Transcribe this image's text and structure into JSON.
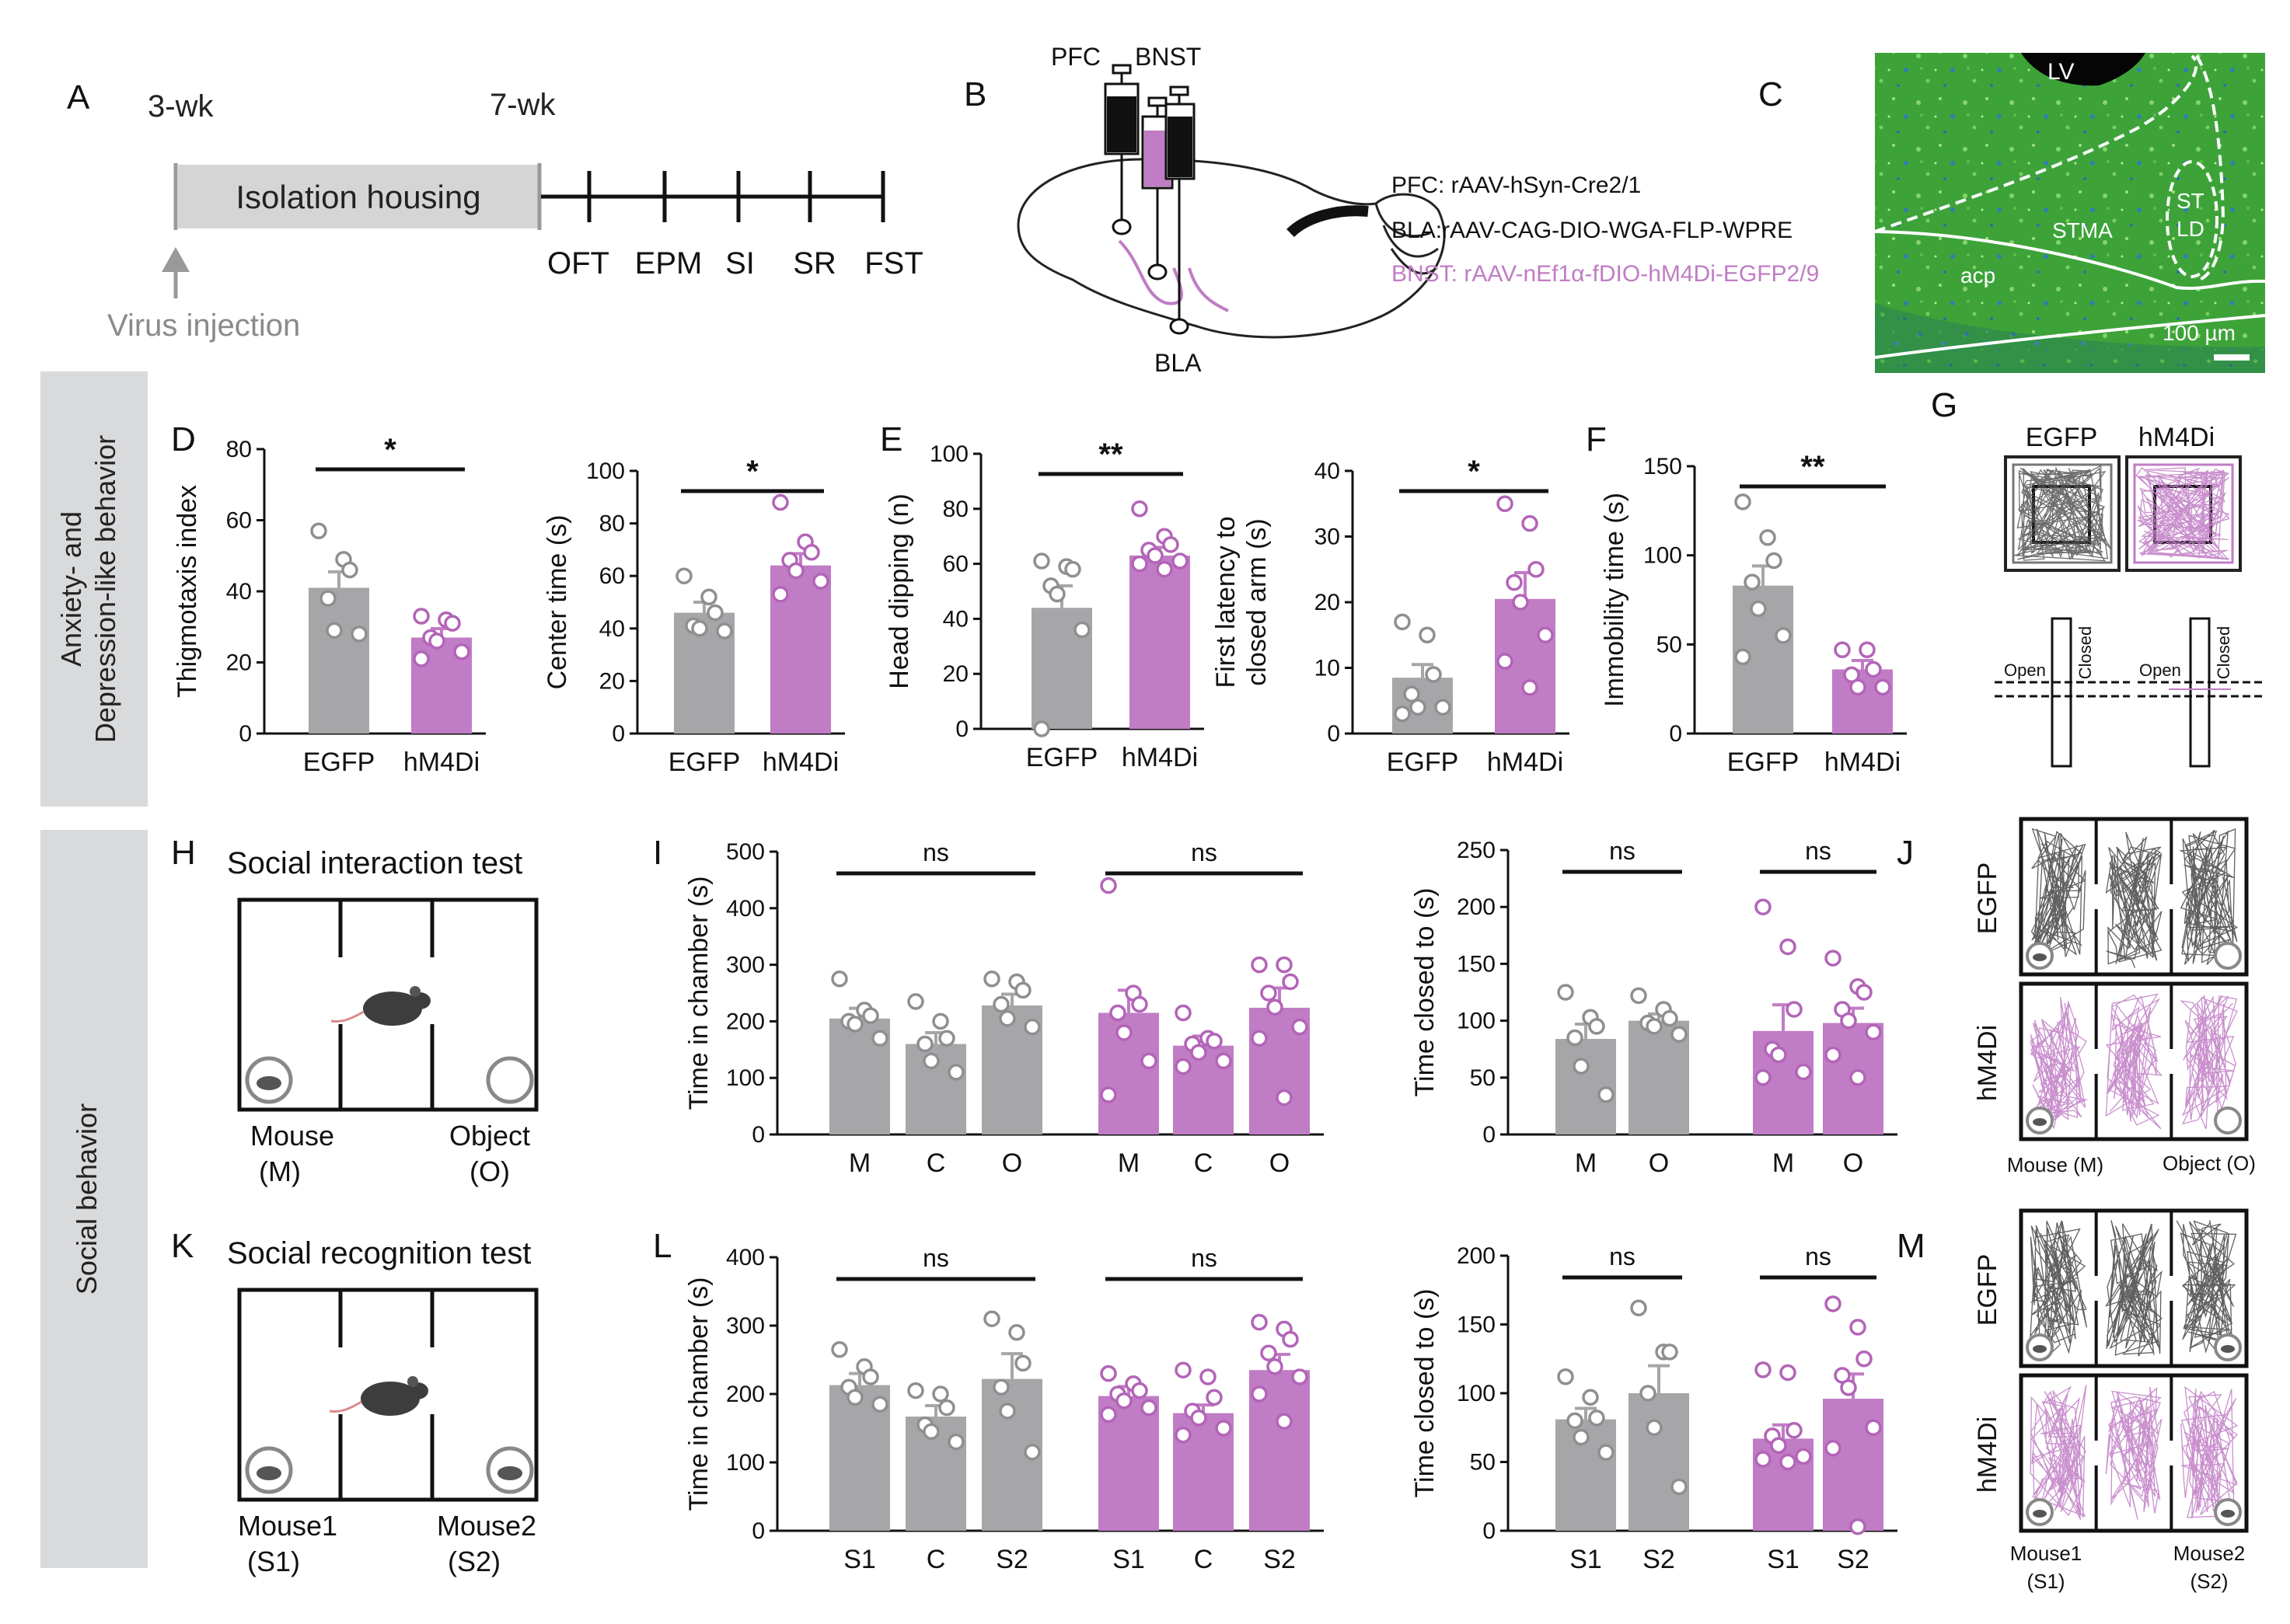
{
  "colors": {
    "egfp": "#a6a6a8",
    "egfp_dot": "#8f8f91",
    "hm4di": "#c07cc4",
    "hm4di_dot": "#b364b7",
    "side_band": "#d9dadc",
    "housing_box": "#d5d5d5",
    "histology_green": "#3faa3a"
  },
  "side_labels": {
    "anxiety_line1": "Anxiety- and",
    "anxiety_line2": "Depression-like behavior",
    "social": "Social behavior"
  },
  "panel_letters": [
    "A",
    "B",
    "C",
    "D",
    "E",
    "F",
    "G",
    "H",
    "I",
    "J",
    "K",
    "L",
    "M"
  ],
  "panelA": {
    "start_label": "3-wk",
    "end_label": "7-wk",
    "housing_label": "Isolation housing",
    "injection_label": "Virus injection",
    "tests": [
      "OFT",
      "EPM",
      "SI",
      "SR",
      "FST"
    ]
  },
  "panelB": {
    "pfc": "PFC",
    "bnst": "BNST",
    "bla": "BLA",
    "legend": [
      "PFC: rAAV-hSyn-Cre2/1",
      "BLA:rAAV-CAG-DIO-WGA-FLP-WPRE",
      "BNST: rAAV-nEf1α-fDIO-hM4Di-EGFP2/9"
    ]
  },
  "panelC": {
    "labels": [
      "LV",
      "ST",
      "LD",
      "STMA",
      "acp"
    ],
    "scale_label": "100 µm"
  },
  "panelG": {
    "groups": [
      "EGFP",
      "hM4Di"
    ],
    "open_label": "Open",
    "closed_label": "Closed"
  },
  "panelH": {
    "title": "Social interaction test",
    "left_label": "Mouse",
    "left_sub": "(M)",
    "right_label": "Object",
    "right_sub": "(O)"
  },
  "panelJ": {
    "rows": [
      "EGFP",
      "hM4Di"
    ],
    "left_label": "Mouse (M)",
    "right_label": "Object (O)"
  },
  "panelK": {
    "title": "Social recognition test",
    "left_label": "Mouse1",
    "left_sub": "(S1)",
    "right_label": "Mouse2",
    "right_sub": "(S2)"
  },
  "panelM": {
    "rows": [
      "EGFP",
      "hM4Di"
    ],
    "left_label": "Mouse1",
    "left_sub": "(S1)",
    "right_label": "Mouse2",
    "right_sub": "(S2)"
  },
  "chart_data": [
    {
      "id": "thigmotaxis",
      "panel": "D",
      "type": "bar",
      "ylabel": "Thigmotaxis index",
      "ylim": [
        0,
        80
      ],
      "yticks": [
        0,
        20,
        40,
        60,
        80
      ],
      "groups": [
        "EGFP",
        "hM4Di"
      ],
      "values": [
        41,
        27
      ],
      "sem": [
        4.5,
        2.5
      ],
      "points": [
        [
          57,
          49,
          46,
          38,
          29,
          28
        ],
        [
          33,
          32,
          31,
          27,
          26,
          23,
          21
        ]
      ],
      "sig": "*"
    },
    {
      "id": "center_time",
      "panel": "D",
      "type": "bar",
      "ylabel": "Center time (s)",
      "ylim": [
        0,
        100
      ],
      "yticks": [
        0,
        20,
        40,
        60,
        80,
        100
      ],
      "groups": [
        "EGFP",
        "hM4Di"
      ],
      "values": [
        46,
        64
      ],
      "sem": [
        4,
        4.5
      ],
      "points": [
        [
          60,
          52,
          46,
          41,
          40,
          39
        ],
        [
          88,
          73,
          69,
          66,
          62,
          58,
          53
        ]
      ],
      "sig": "*"
    },
    {
      "id": "head_dipping",
      "panel": "E",
      "type": "bar",
      "ylabel": "Head dipping (n)",
      "ylim": [
        0,
        100
      ],
      "yticks": [
        0,
        20,
        40,
        60,
        80,
        100
      ],
      "groups": [
        "EGFP",
        "hM4Di"
      ],
      "values": [
        44,
        63
      ],
      "sem": [
        8,
        3
      ],
      "points": [
        [
          61,
          59,
          58,
          52,
          49,
          36,
          0
        ],
        [
          80,
          70,
          67,
          65,
          63,
          61,
          60,
          58
        ]
      ],
      "sig": "**"
    },
    {
      "id": "first_latency",
      "panel": "E",
      "type": "bar",
      "ylabel": "First latency to closed arm (s)",
      "ylabel_lines": [
        "First latency to",
        "closed arm (s)"
      ],
      "ylim": [
        0,
        40
      ],
      "yticks": [
        0,
        10,
        20,
        30,
        40
      ],
      "groups": [
        "EGFP",
        "hM4Di"
      ],
      "values": [
        8.5,
        20.5
      ],
      "sem": [
        2,
        4
      ],
      "points": [
        [
          17,
          15,
          9,
          6,
          4,
          4,
          3
        ],
        [
          35,
          32,
          25,
          23,
          20,
          15,
          11,
          7
        ]
      ],
      "sig": "*"
    },
    {
      "id": "immobility",
      "panel": "F",
      "type": "bar",
      "ylabel": "Immobility time (s)",
      "ylim": [
        0,
        150
      ],
      "yticks": [
        0,
        50,
        100,
        150
      ],
      "groups": [
        "EGFP",
        "hM4Di"
      ],
      "values": [
        83,
        36
      ],
      "sem": [
        11,
        5
      ],
      "points": [
        [
          130,
          110,
          97,
          85,
          70,
          55,
          43
        ],
        [
          47,
          47,
          36,
          33,
          26,
          26
        ]
      ],
      "sig": "**"
    },
    {
      "id": "si_time_chamber",
      "panel": "I",
      "type": "bar",
      "ylabel": "Time in chamber (s)",
      "ylim": [
        0,
        500
      ],
      "yticks": [
        0,
        100,
        200,
        300,
        400,
        500
      ],
      "categories": [
        "M",
        "C",
        "O",
        "M",
        "C",
        "O"
      ],
      "group_of_bar": [
        "EGFP",
        "EGFP",
        "EGFP",
        "hM4Di",
        "hM4Di",
        "hM4Di"
      ],
      "values": [
        205,
        160,
        228,
        215,
        157,
        224
      ],
      "sem": [
        18,
        20,
        20,
        40,
        17,
        35
      ],
      "points": [
        [
          275,
          220,
          210,
          200,
          195,
          170
        ],
        [
          235,
          200,
          170,
          160,
          130,
          110
        ],
        [
          275,
          270,
          255,
          230,
          205,
          190
        ],
        [
          440,
          250,
          230,
          215,
          180,
          130,
          70
        ],
        [
          215,
          170,
          165,
          160,
          145,
          130,
          120
        ],
        [
          300,
          300,
          270,
          250,
          225,
          190,
          170,
          65
        ]
      ],
      "sig": [
        {
          "from": 0,
          "to": 2,
          "label": "ns"
        },
        {
          "from": 3,
          "to": 5,
          "label": "ns"
        }
      ]
    },
    {
      "id": "si_time_closed",
      "panel": "I",
      "type": "bar",
      "ylabel": "Time closed to (s)",
      "ylim": [
        0,
        250
      ],
      "yticks": [
        0,
        50,
        100,
        150,
        200,
        250
      ],
      "categories": [
        "M",
        "O",
        "M",
        "O"
      ],
      "group_of_bar": [
        "EGFP",
        "EGFP",
        "hM4Di",
        "hM4Di"
      ],
      "values": [
        84,
        100,
        91,
        98
      ],
      "sem": [
        13,
        6,
        23,
        13
      ],
      "points": [
        [
          125,
          103,
          95,
          85,
          60,
          35
        ],
        [
          122,
          110,
          102,
          98,
          95,
          88
        ],
        [
          200,
          165,
          110,
          75,
          70,
          55,
          50
        ],
        [
          155,
          130,
          125,
          110,
          100,
          90,
          70,
          50
        ]
      ],
      "sig": [
        {
          "from": 0,
          "to": 1,
          "label": "ns"
        },
        {
          "from": 2,
          "to": 3,
          "label": "ns"
        }
      ]
    },
    {
      "id": "sr_time_chamber",
      "panel": "L",
      "type": "bar",
      "ylabel": "Time in chamber (s)",
      "ylim": [
        0,
        400
      ],
      "yticks": [
        0,
        100,
        200,
        300,
        400
      ],
      "categories": [
        "S1",
        "C",
        "S2",
        "S1",
        "C",
        "S2"
      ],
      "group_of_bar": [
        "EGFP",
        "EGFP",
        "EGFP",
        "hM4Di",
        "hM4Di",
        "hM4Di"
      ],
      "values": [
        213,
        167,
        222,
        197,
        172,
        235
      ],
      "sem": [
        17,
        16,
        37,
        14,
        12,
        23
      ],
      "points": [
        [
          265,
          240,
          225,
          210,
          195,
          185
        ],
        [
          205,
          200,
          180,
          155,
          145,
          130
        ],
        [
          310,
          290,
          245,
          210,
          175,
          115
        ],
        [
          230,
          215,
          205,
          200,
          190,
          180,
          170
        ],
        [
          235,
          225,
          195,
          175,
          165,
          150,
          140
        ],
        [
          305,
          295,
          280,
          260,
          240,
          225,
          200,
          160
        ]
      ],
      "sig": [
        {
          "from": 0,
          "to": 2,
          "label": "ns"
        },
        {
          "from": 3,
          "to": 5,
          "label": "ns"
        }
      ]
    },
    {
      "id": "sr_time_closed",
      "panel": "L",
      "type": "bar",
      "ylabel": "Time closed to (s)",
      "ylim": [
        0,
        200
      ],
      "yticks": [
        0,
        50,
        100,
        150,
        200
      ],
      "categories": [
        "S1",
        "S2",
        "S1",
        "S2"
      ],
      "group_of_bar": [
        "EGFP",
        "EGFP",
        "hM4Di",
        "hM4Di"
      ],
      "values": [
        81,
        100,
        67,
        96
      ],
      "sem": [
        8,
        20,
        10,
        18
      ],
      "points": [
        [
          112,
          97,
          82,
          80,
          68,
          57
        ],
        [
          162,
          130,
          130,
          100,
          75,
          32
        ],
        [
          117,
          115,
          73,
          69,
          62,
          54,
          52,
          50
        ],
        [
          165,
          148,
          125,
          113,
          104,
          75,
          60,
          3
        ]
      ],
      "sig": [
        {
          "from": 0,
          "to": 1,
          "label": "ns"
        },
        {
          "from": 2,
          "to": 3,
          "label": "ns"
        }
      ]
    }
  ]
}
